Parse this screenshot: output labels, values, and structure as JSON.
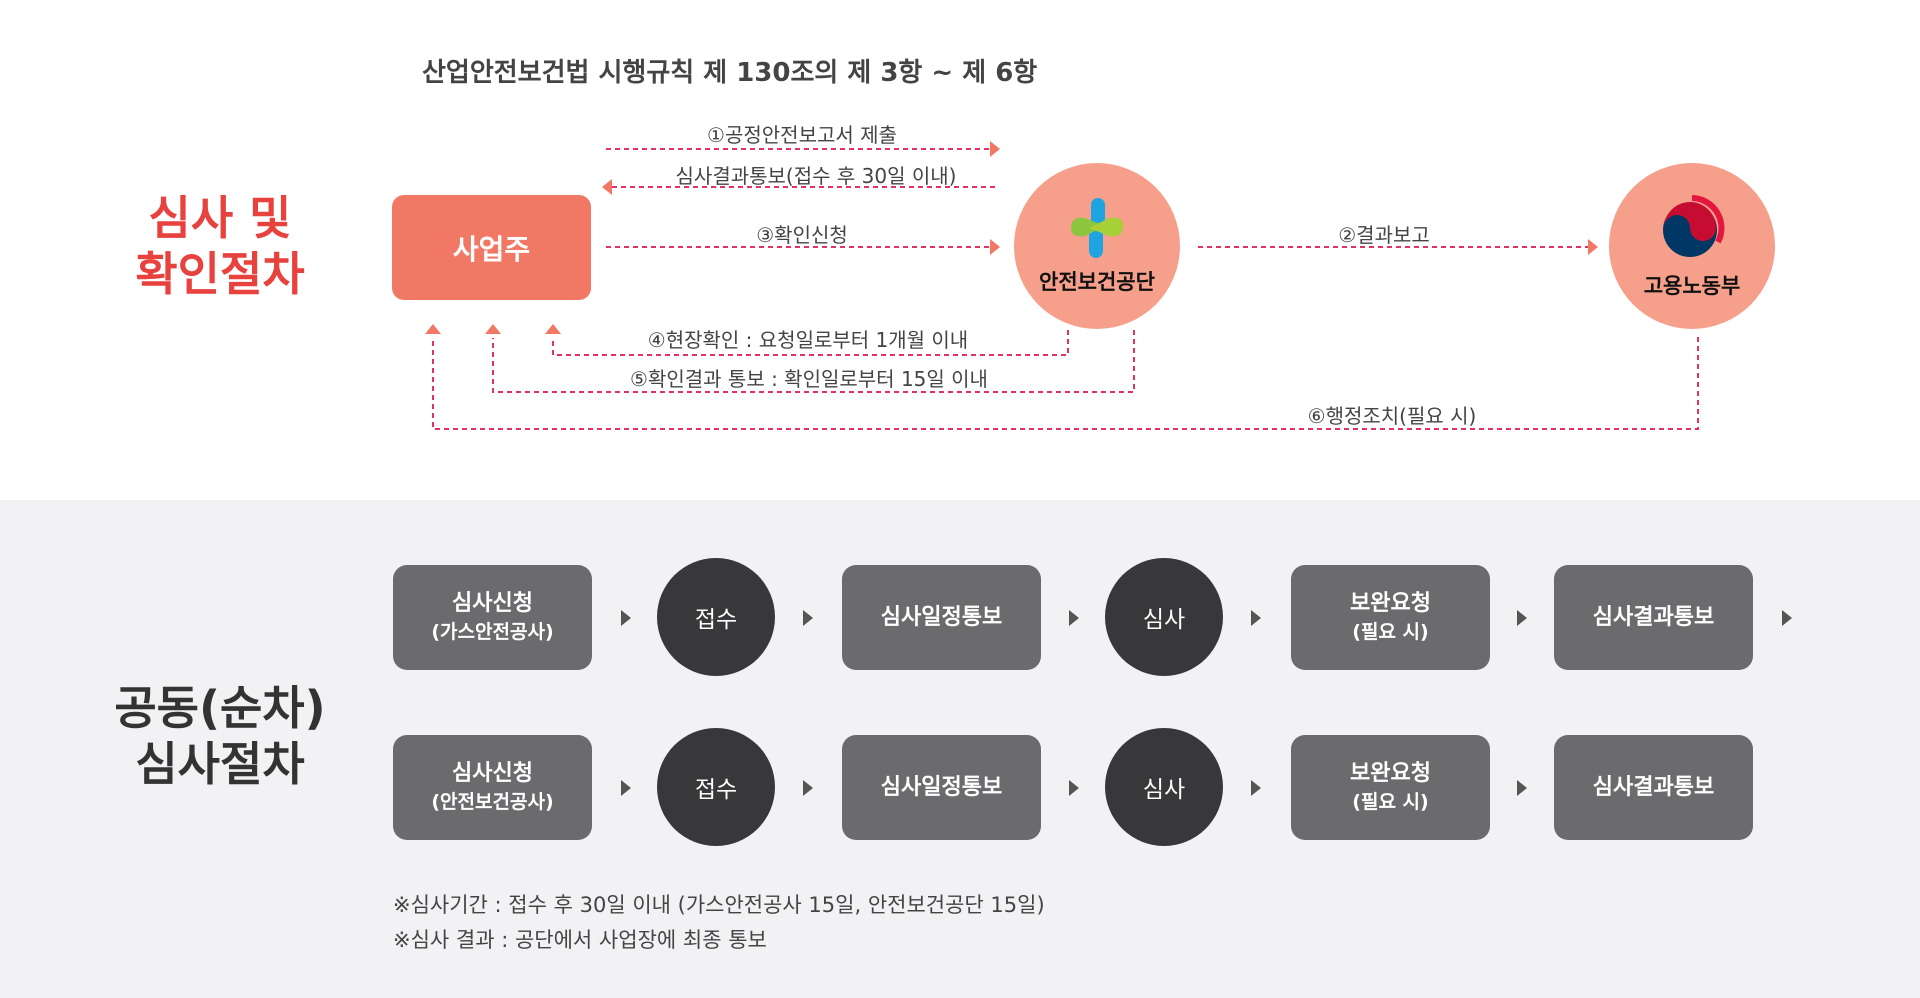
{
  "top": {
    "title": "산업안전보건법 시행규칙 제 130조의 제 3항 ~ 제 6항",
    "heading_line1": "심사 및",
    "heading_line2": "확인절차",
    "heading_color": "#e8423f",
    "owner": "사업주",
    "kosha": {
      "name": "안전보건공단",
      "icon": "kosha-cross-logo"
    },
    "moel": {
      "name": "고용노동부",
      "icon": "taegeuk-government-logo"
    },
    "arrows": {
      "a1": "①공정안전보고서 제출",
      "a1_return": "심사결과통보(접수 후 30일 이내)",
      "a3": "③확인신청",
      "a2": "②결과보고",
      "a4": "④현장확인 : 요청일로부터 1개월 이내",
      "a5": "⑤확인결과 통보 : 확인일로부터 15일 이내",
      "a6": "⑥행정조치(필요 시)"
    },
    "line_color": "#e0335f",
    "arrowhead_color": "#f27866"
  },
  "bottom": {
    "heading_line1": "공동(순차)",
    "heading_line2": "심사절차",
    "rows": [
      {
        "steps": [
          {
            "title": "심사신청",
            "sub": "(가스안전공사)"
          },
          {
            "title": "접수"
          },
          {
            "title": "심사일정통보"
          },
          {
            "title": "심사"
          },
          {
            "title": "보완요청",
            "sub": "(필요 시)"
          },
          {
            "title": "심사결과통보"
          }
        ]
      },
      {
        "steps": [
          {
            "title": "심사신청",
            "sub": "(안전보건공사)"
          },
          {
            "title": "접수"
          },
          {
            "title": "심사일정통보"
          },
          {
            "title": "심사"
          },
          {
            "title": "보완요청",
            "sub": "(필요 시)"
          },
          {
            "title": "심사결과통보"
          }
        ]
      }
    ],
    "notes": [
      "※심사기간 : 접수 후 30일 이내 (가스안전공사 15일, 안전보건공단 15일)",
      "※심사 결과 : 공단에서 사업장에 최종 통보"
    ]
  }
}
